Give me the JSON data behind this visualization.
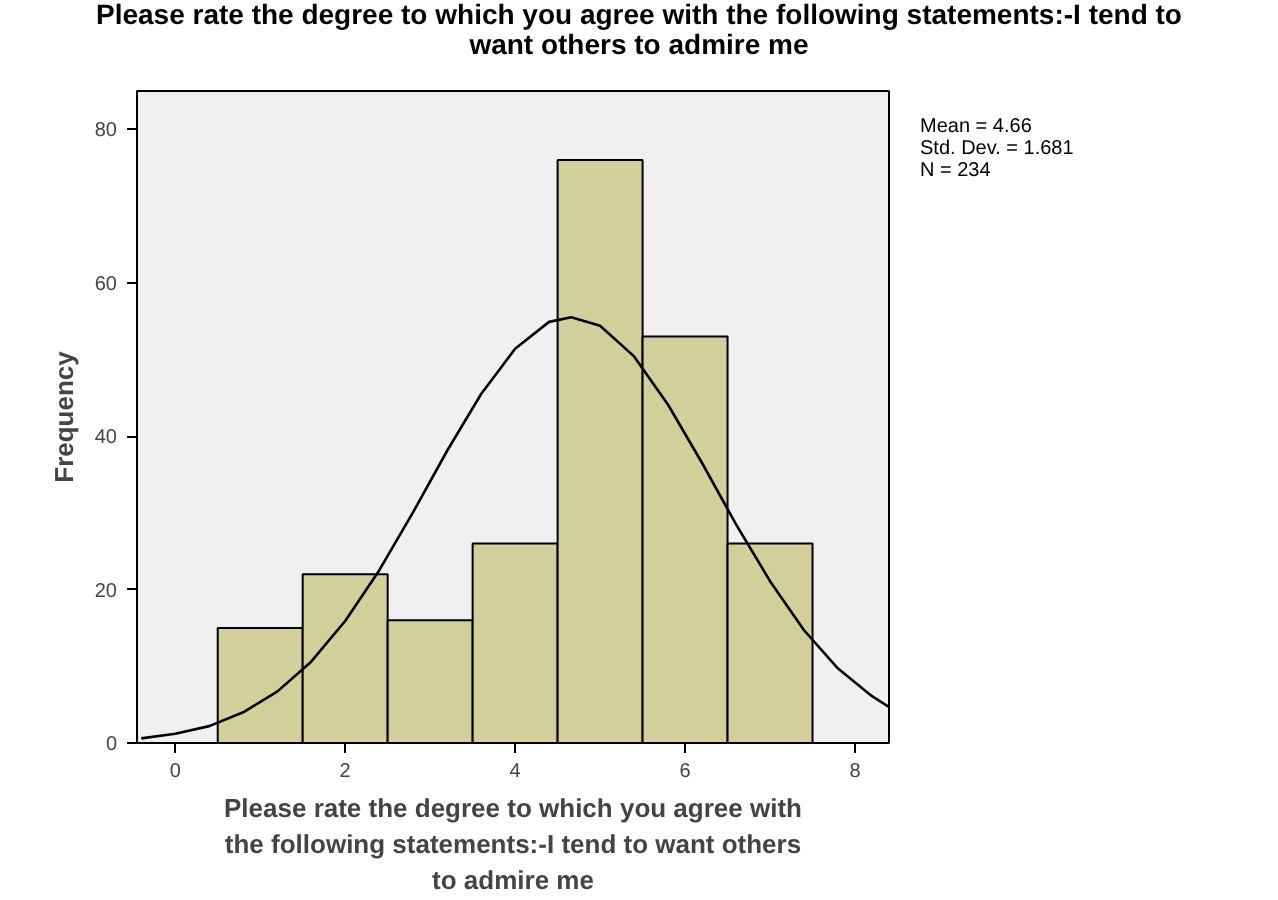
{
  "chart_data": {
    "type": "histogram",
    "title": "Please rate the degree to which you agree with the following statements:-I tend to want others to admire me",
    "xlabel": "Please rate the degree to which you agree with the following statements:-I tend to want others to admire me",
    "ylabel": "Frequency",
    "bins": [
      0.5,
      1.5,
      2.5,
      3.5,
      4.5,
      5.5,
      6.5,
      7.5
    ],
    "values": [
      15,
      22,
      16,
      26,
      76,
      53,
      26
    ],
    "color": "#d3cf9a",
    "series": [
      {
        "type": "line",
        "color": "#000000",
        "x": [
          -0.4,
          0.0,
          0.4,
          0.8,
          1.2,
          1.6,
          2.0,
          2.4,
          2.8,
          3.2,
          3.6,
          4.0,
          4.4,
          4.66,
          5.0,
          5.4,
          5.8,
          6.2,
          6.6,
          7.0,
          7.4,
          7.8,
          8.2,
          8.4
        ],
        "values": [
          0.6,
          1.2,
          2.2,
          4.0,
          6.7,
          10.6,
          15.9,
          22.5,
          30.1,
          38.1,
          45.5,
          51.4,
          54.9,
          55.5,
          54.4,
          50.4,
          44.1,
          36.5,
          28.5,
          21.1,
          14.7,
          9.7,
          6.1,
          4.7
        ]
      }
    ],
    "annotations": [
      "Mean = 4.66",
      "Std. Dev. = 1.681",
      "N = 234"
    ],
    "xlim": [
      -0.45,
      8.4
    ],
    "ylim": [
      0,
      85
    ],
    "xticks": [
      0,
      2,
      4,
      6,
      8
    ],
    "yticks": [
      0,
      20,
      40,
      60,
      80
    ],
    "grid": false
  }
}
